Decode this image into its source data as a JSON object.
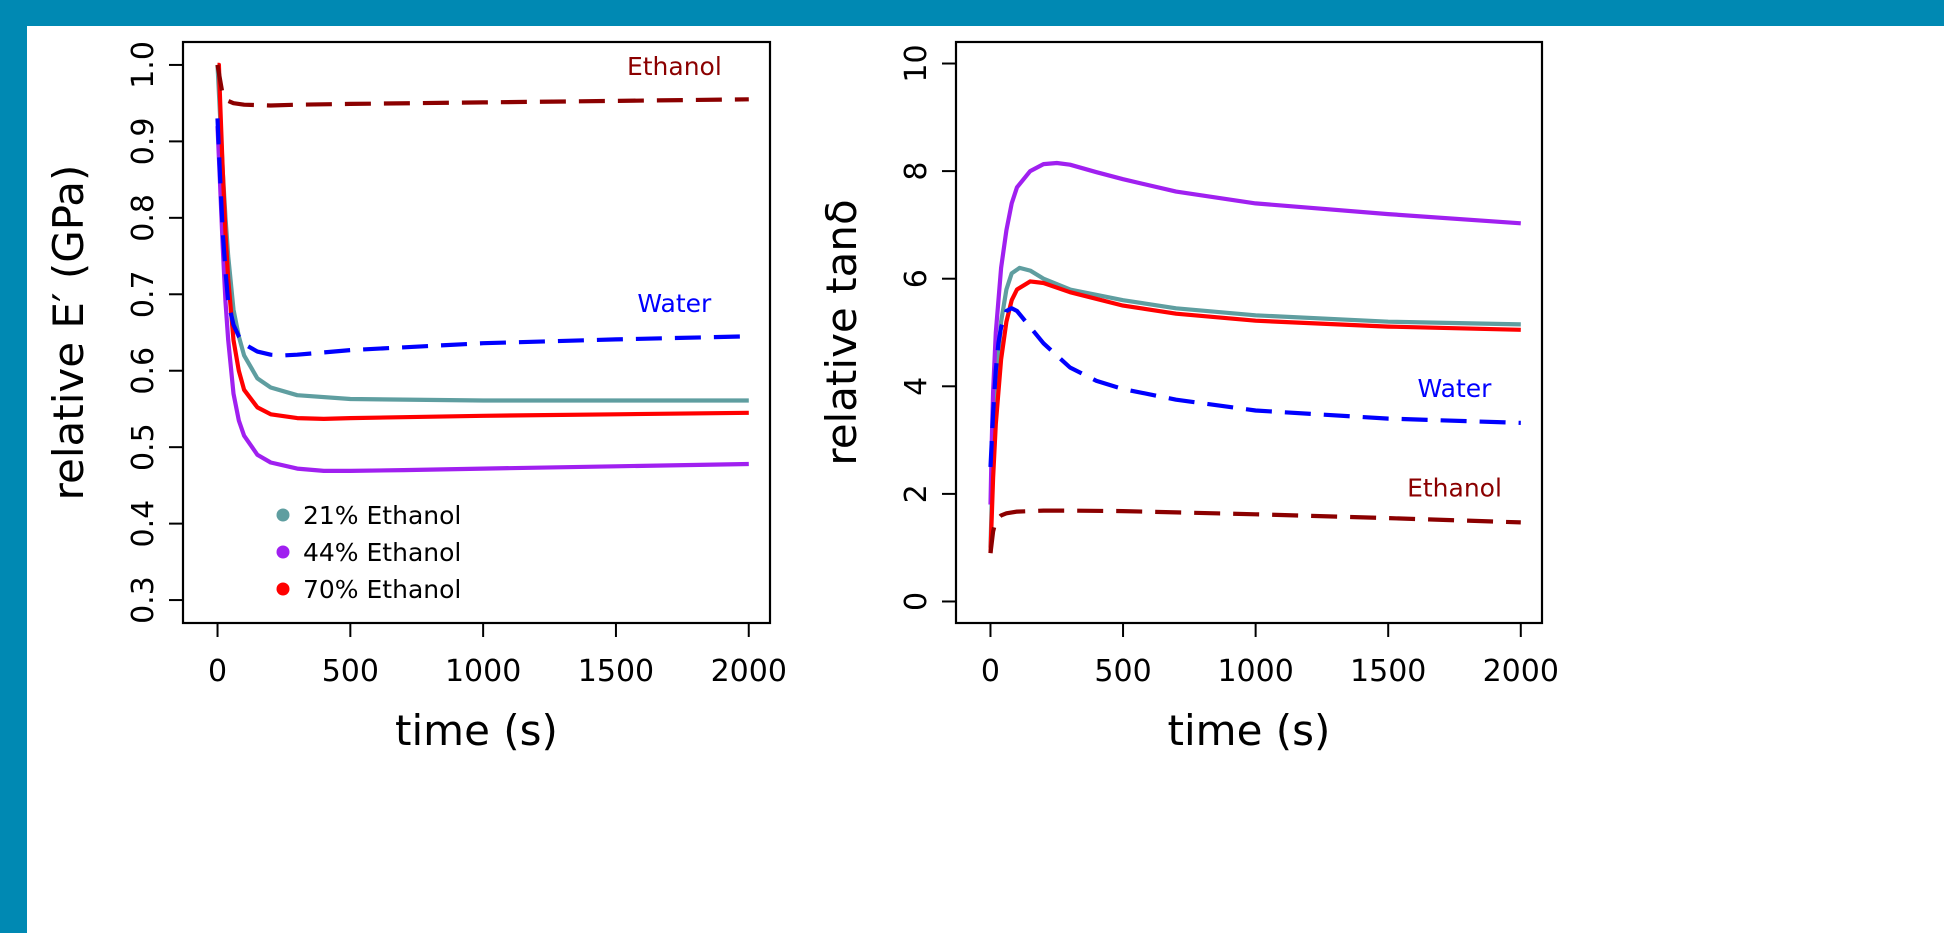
{
  "colors": {
    "background": "#0089b3",
    "ethanol_21": "#5f9ea0",
    "ethanol_44": "#a020f0",
    "ethanol_70": "#ff0000",
    "water": "#0000ff",
    "ethanol": "#8b0000"
  },
  "chart_data": [
    {
      "type": "line",
      "xlabel": "time (s)",
      "ylabel": "relative E′ (GPa)",
      "xlim": [
        -130,
        2080
      ],
      "ylim": [
        0.27,
        1.03
      ],
      "xticks": [
        0,
        500,
        1000,
        1500,
        2000
      ],
      "yticks": [
        0.3,
        0.4,
        0.5,
        0.6,
        0.7,
        0.8,
        0.9,
        1.0
      ],
      "xtick_labels": [
        "0",
        "500",
        "1000",
        "1500",
        "2000"
      ],
      "ytick_labels": [
        "0.3",
        "0.4",
        "0.5",
        "0.6",
        "0.7",
        "0.8",
        "0.9",
        "1.0"
      ],
      "legend": {
        "placement": "bottom-left",
        "entries": [
          {
            "label": "21% Ethanol",
            "color": "#5f9ea0"
          },
          {
            "label": "44% Ethanol",
            "color": "#a020f0"
          },
          {
            "label": "70% Ethanol",
            "color": "#ff0000"
          }
        ]
      },
      "annotations": [
        {
          "text": "Ethanol",
          "x": 1720,
          "y": 0.987,
          "color": "#8b0000"
        },
        {
          "text": "Water",
          "x": 1720,
          "y": 0.677,
          "color": "#0000ff"
        }
      ],
      "series": [
        {
          "name": "21% Ethanol",
          "color": "#5f9ea0",
          "dash": false,
          "x": [
            0,
            10,
            20,
            30,
            40,
            60,
            80,
            100,
            150,
            200,
            300,
            500,
            1000,
            1500,
            2000
          ],
          "y": [
            1.0,
            0.93,
            0.86,
            0.8,
            0.75,
            0.68,
            0.645,
            0.62,
            0.59,
            0.578,
            0.568,
            0.563,
            0.561,
            0.561,
            0.561
          ]
        },
        {
          "name": "44% Ethanol",
          "color": "#a020f0",
          "dash": false,
          "x": [
            0,
            10,
            20,
            30,
            40,
            60,
            80,
            100,
            150,
            200,
            300,
            400,
            500,
            700,
            1000,
            1500,
            2000
          ],
          "y": [
            0.92,
            0.84,
            0.76,
            0.69,
            0.64,
            0.57,
            0.535,
            0.515,
            0.49,
            0.48,
            0.472,
            0.469,
            0.469,
            0.47,
            0.472,
            0.475,
            0.478
          ]
        },
        {
          "name": "70% Ethanol",
          "color": "#ff0000",
          "dash": false,
          "x": [
            0,
            5,
            10,
            20,
            30,
            40,
            60,
            80,
            100,
            150,
            200,
            300,
            400,
            500,
            1000,
            1500,
            2000
          ],
          "y": [
            1.0,
            1.0,
            0.95,
            0.86,
            0.78,
            0.72,
            0.64,
            0.6,
            0.575,
            0.552,
            0.543,
            0.538,
            0.537,
            0.538,
            0.541,
            0.543,
            0.545
          ]
        },
        {
          "name": "Water",
          "color": "#0000ff",
          "dash": true,
          "x": [
            0,
            10,
            20,
            30,
            40,
            60,
            80,
            100,
            150,
            200,
            250,
            300,
            500,
            1000,
            1500,
            2000
          ],
          "y": [
            0.93,
            0.85,
            0.78,
            0.73,
            0.69,
            0.66,
            0.645,
            0.635,
            0.625,
            0.621,
            0.62,
            0.621,
            0.627,
            0.636,
            0.641,
            0.645
          ]
        },
        {
          "name": "Ethanol",
          "color": "#8b0000",
          "dash": true,
          "x": [
            0,
            20,
            40,
            60,
            100,
            200,
            300,
            500,
            1000,
            1500,
            2000
          ],
          "y": [
            1.0,
            0.96,
            0.953,
            0.95,
            0.948,
            0.947,
            0.948,
            0.949,
            0.951,
            0.953,
            0.955
          ]
        }
      ]
    },
    {
      "type": "line",
      "xlabel": "time (s)",
      "ylabel": "relative tanδ",
      "xlim": [
        -130,
        2080
      ],
      "ylim": [
        -0.4,
        10.4
      ],
      "xticks": [
        0,
        500,
        1000,
        1500,
        2000
      ],
      "yticks": [
        0,
        2,
        4,
        6,
        8,
        10
      ],
      "xtick_labels": [
        "0",
        "500",
        "1000",
        "1500",
        "2000"
      ],
      "ytick_labels": [
        "0",
        "2",
        "4",
        "6",
        "8",
        "10"
      ],
      "annotations": [
        {
          "text": "Water",
          "x": 1750,
          "y": 3.8,
          "color": "#0000ff"
        },
        {
          "text": "Ethanol",
          "x": 1750,
          "y": 1.95,
          "color": "#8b0000"
        }
      ],
      "series": [
        {
          "name": "21% Ethanol",
          "color": "#5f9ea0",
          "dash": false,
          "x": [
            0,
            10,
            20,
            40,
            60,
            80,
            110,
            150,
            200,
            300,
            500,
            700,
            1000,
            1500,
            2000
          ],
          "y": [
            1.0,
            2.8,
            4.0,
            5.2,
            5.8,
            6.1,
            6.2,
            6.15,
            6.0,
            5.8,
            5.6,
            5.45,
            5.32,
            5.2,
            5.15
          ]
        },
        {
          "name": "44% Ethanol",
          "color": "#a020f0",
          "dash": false,
          "x": [
            0,
            5,
            10,
            20,
            40,
            60,
            80,
            100,
            150,
            200,
            250,
            300,
            400,
            500,
            700,
            1000,
            1500,
            2000
          ],
          "y": [
            1.8,
            3.0,
            3.9,
            5.0,
            6.2,
            6.9,
            7.4,
            7.7,
            8.0,
            8.13,
            8.15,
            8.12,
            7.98,
            7.85,
            7.62,
            7.4,
            7.2,
            7.03
          ]
        },
        {
          "name": "70% Ethanol",
          "color": "#ff0000",
          "dash": false,
          "x": [
            0,
            10,
            20,
            40,
            60,
            80,
            100,
            150,
            200,
            300,
            500,
            700,
            1000,
            1500,
            2000
          ],
          "y": [
            0.9,
            2.3,
            3.3,
            4.5,
            5.2,
            5.6,
            5.8,
            5.95,
            5.92,
            5.75,
            5.5,
            5.35,
            5.22,
            5.11,
            5.05
          ]
        },
        {
          "name": "Water",
          "color": "#0000ff",
          "dash": true,
          "x": [
            0,
            10,
            20,
            30,
            40,
            60,
            80,
            100,
            150,
            200,
            300,
            400,
            500,
            700,
            1000,
            1500,
            2000
          ],
          "y": [
            2.5,
            3.5,
            4.3,
            4.8,
            5.1,
            5.4,
            5.45,
            5.4,
            5.1,
            4.8,
            4.35,
            4.1,
            3.95,
            3.75,
            3.55,
            3.4,
            3.32
          ]
        },
        {
          "name": "Ethanol",
          "color": "#8b0000",
          "dash": true,
          "x": [
            0,
            10,
            20,
            40,
            60,
            100,
            200,
            300,
            500,
            1000,
            1500,
            2000
          ],
          "y": [
            0.9,
            1.3,
            1.5,
            1.6,
            1.64,
            1.67,
            1.69,
            1.69,
            1.68,
            1.62,
            1.55,
            1.47
          ]
        }
      ]
    }
  ]
}
